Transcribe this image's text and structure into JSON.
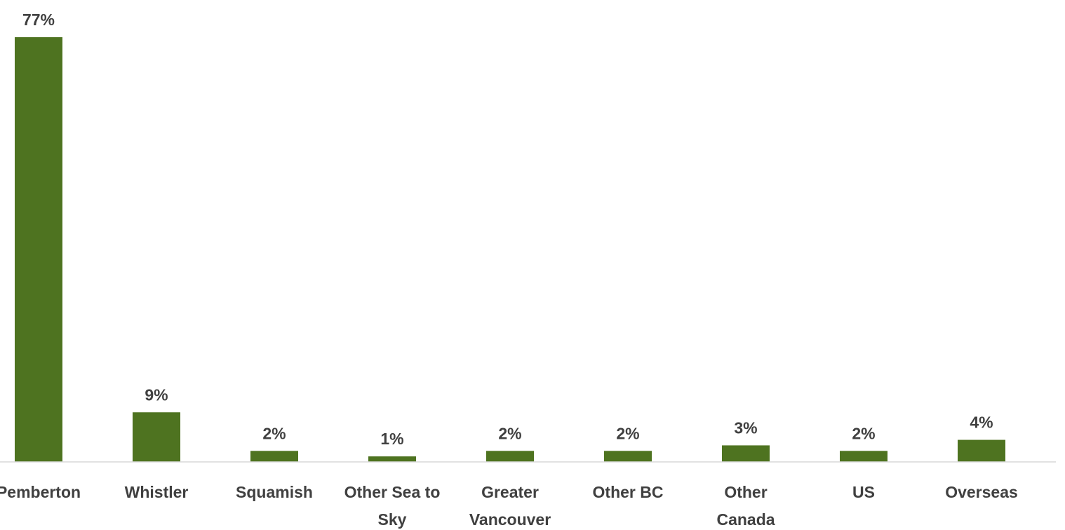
{
  "chart_data": {
    "type": "bar",
    "categories": [
      [
        "Pemberton"
      ],
      [
        "Whistler"
      ],
      [
        "Squamish"
      ],
      [
        "Other Sea to",
        "Sky"
      ],
      [
        "Greater",
        "Vancouver"
      ],
      [
        "Other BC"
      ],
      [
        "Other",
        "Canada"
      ],
      [
        "US"
      ],
      [
        "Overseas"
      ]
    ],
    "values": [
      77,
      9,
      2,
      1,
      2,
      2,
      3,
      2,
      4
    ],
    "data_labels": [
      "77%",
      "9%",
      "2%",
      "1%",
      "2%",
      "2%",
      "3%",
      "2%",
      "4%"
    ],
    "ylim": [
      0,
      77
    ],
    "grid": false,
    "bar_color": "#4e7320",
    "axis_color": "#d9d9d9"
  }
}
